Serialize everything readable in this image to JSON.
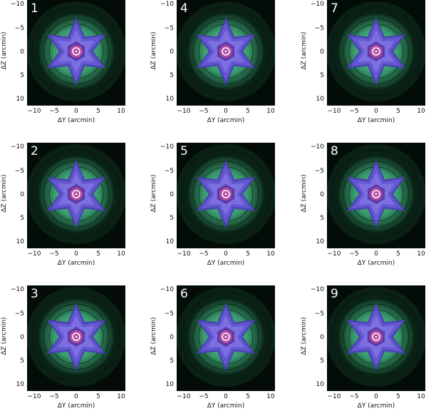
{
  "figure": {
    "x_axis_label": "ΔY (arcmin)",
    "y_axis_label": "ΔZ (arcmin)",
    "x_ticks": [
      "−10",
      "−5",
      "0",
      "5",
      "10"
    ],
    "y_ticks": [
      "−10",
      "−5",
      "0",
      "5",
      "10"
    ],
    "panels": [
      {
        "label": "1"
      },
      {
        "label": "2"
      },
      {
        "label": "3"
      },
      {
        "label": "4"
      },
      {
        "label": "5"
      },
      {
        "label": "6"
      },
      {
        "label": "7"
      },
      {
        "label": "8"
      },
      {
        "label": "9"
      }
    ],
    "colors": {
      "background": "#030c06",
      "halo": "#3fae7a",
      "star": "#6a5ad8",
      "core": "#b04aa0"
    }
  }
}
